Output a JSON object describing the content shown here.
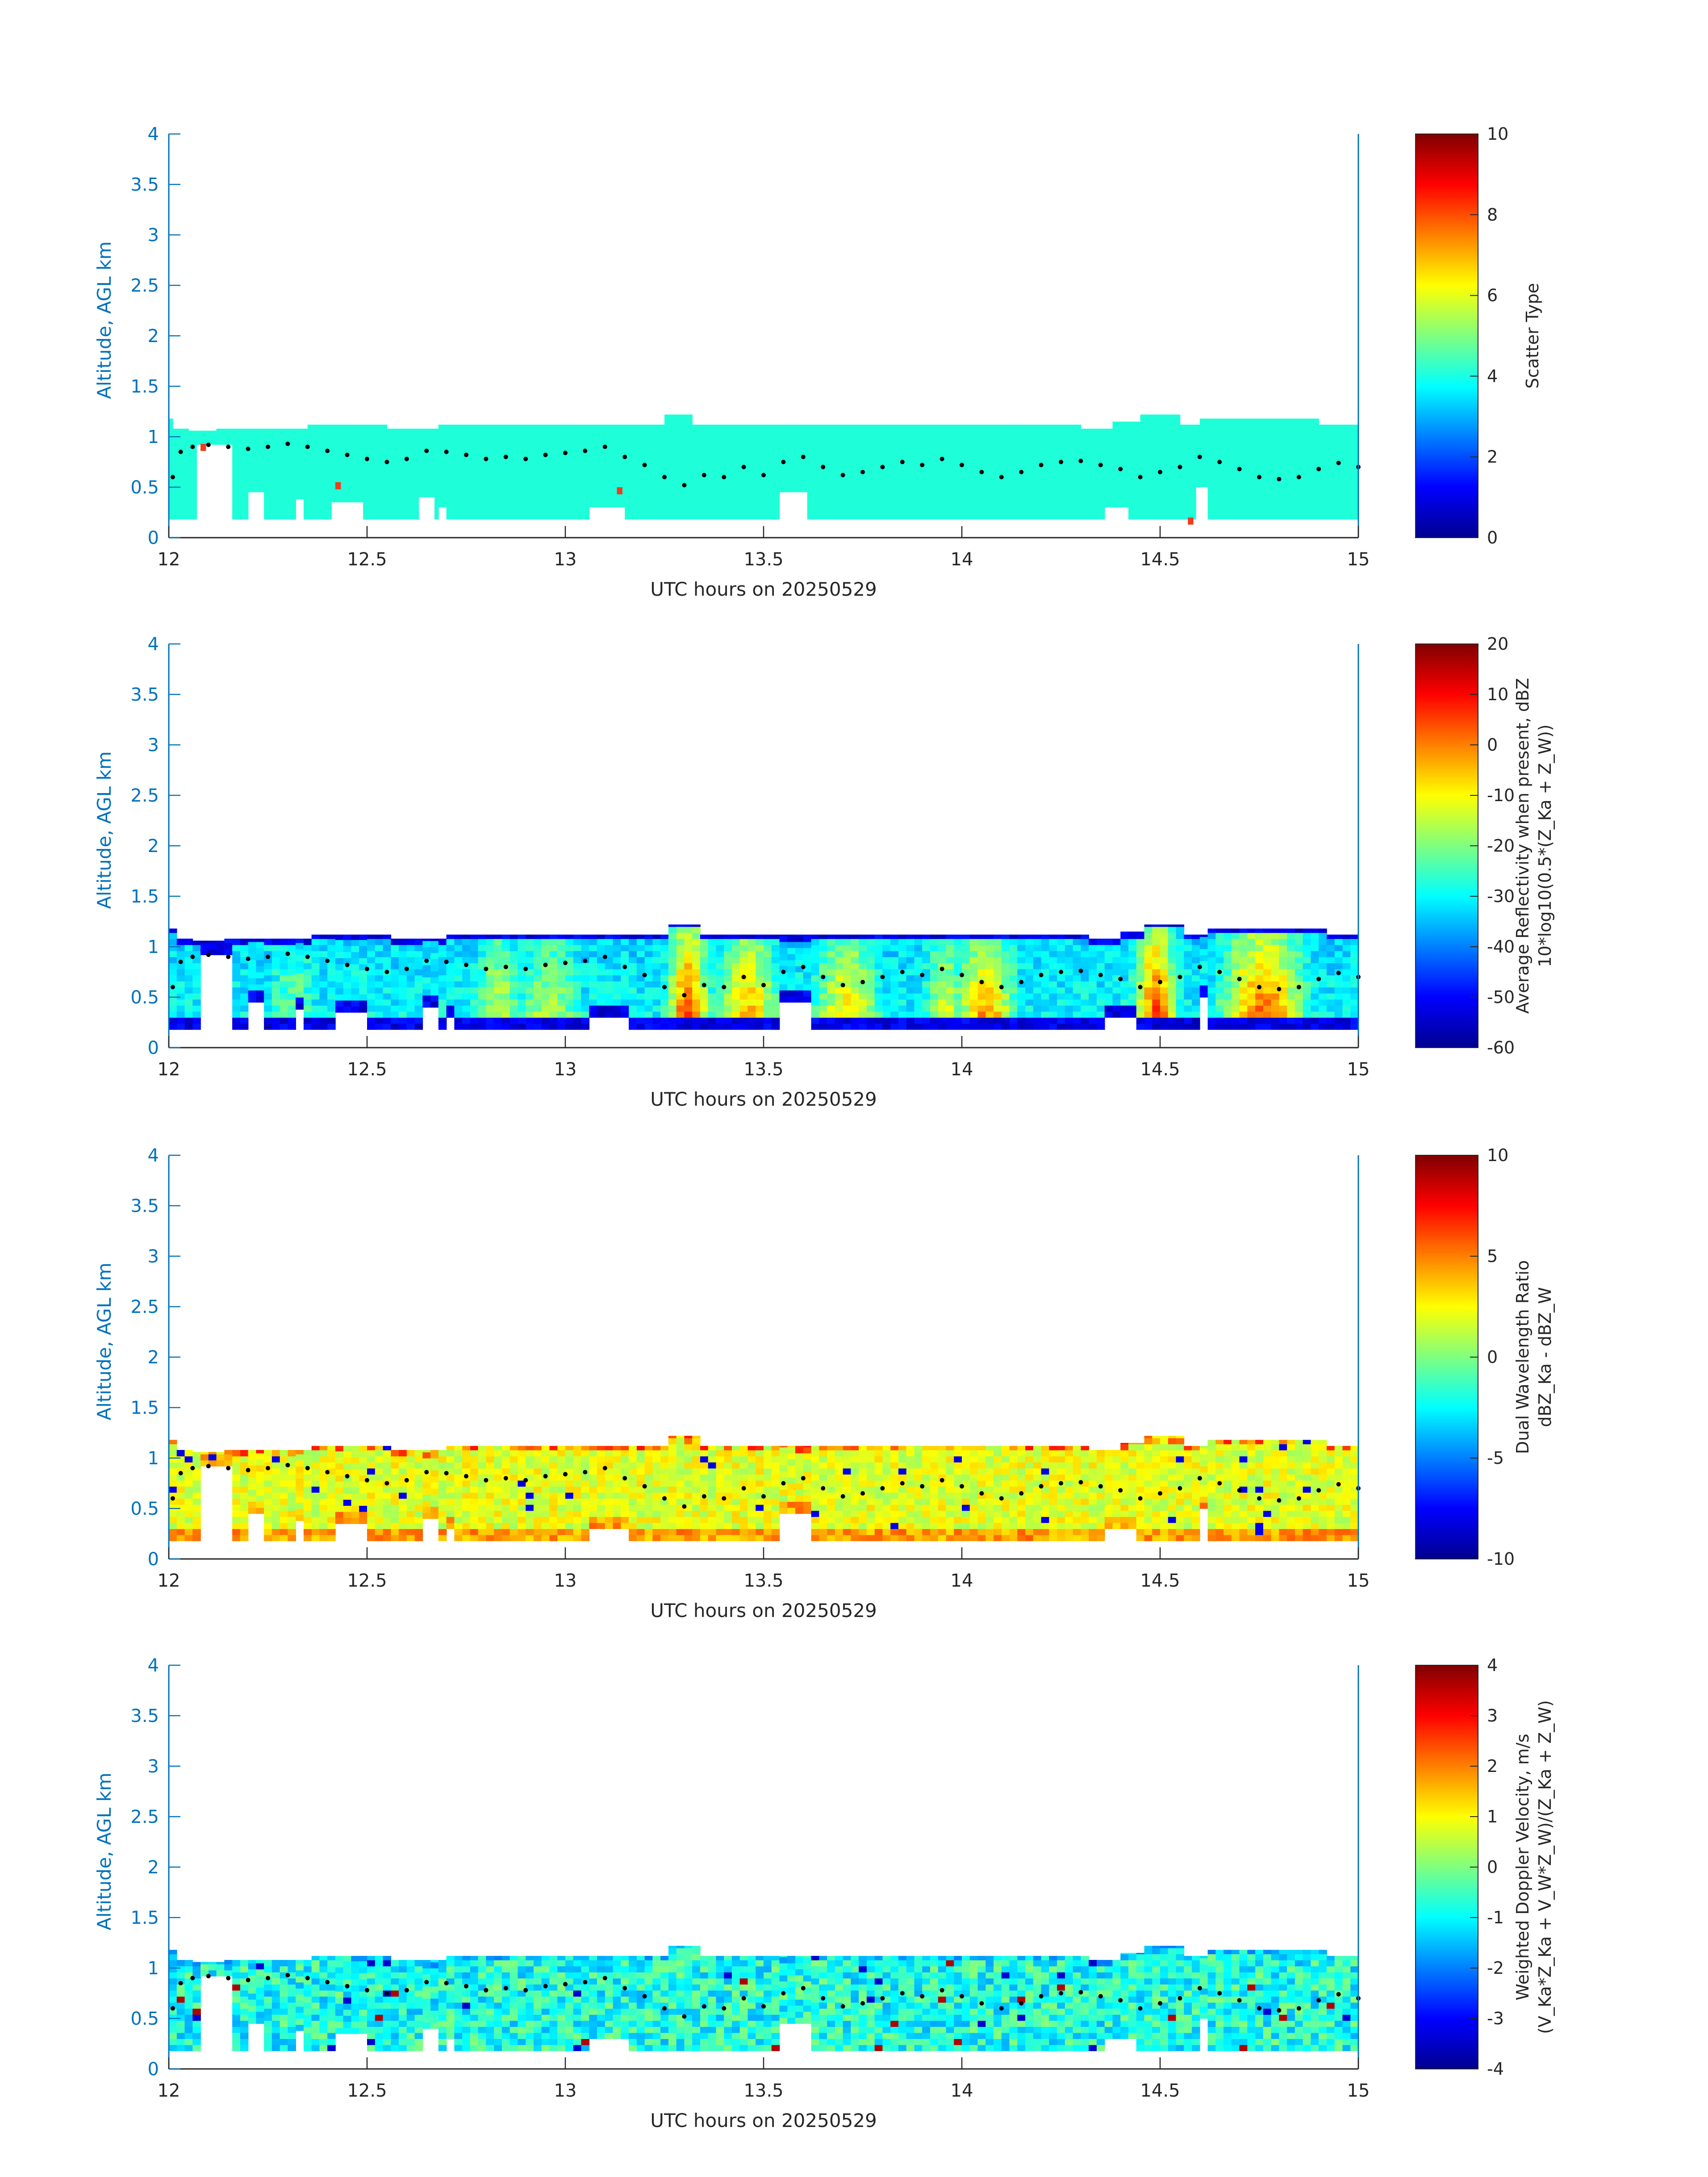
{
  "chart_data": [
    {
      "type": "heatmap",
      "field": "scatter_type",
      "xlabel": "UTC hours on 20250529",
      "ylabel": "Altitude, AGL km",
      "xlim": [
        12,
        15
      ],
      "ylim": [
        0,
        4
      ],
      "xticks": [
        "12",
        "12.5",
        "13",
        "13.5",
        "14",
        "14.5",
        "15"
      ],
      "yticks": [
        "0",
        "0.5",
        "1",
        "1.5",
        "2",
        "2.5",
        "3",
        "3.5",
        "4"
      ],
      "colorbar": {
        "label": "Scatter Type",
        "label2": "",
        "clim": [
          0,
          10
        ],
        "ticks": [
          "0",
          "2",
          "4",
          "6",
          "8",
          "10"
        ]
      }
    },
    {
      "type": "heatmap",
      "field": "reflectivity",
      "xlabel": "UTC hours on 20250529",
      "ylabel": "Altitude, AGL km",
      "xlim": [
        12,
        15
      ],
      "ylim": [
        0,
        4
      ],
      "xticks": [
        "12",
        "12.5",
        "13",
        "13.5",
        "14",
        "14.5",
        "15"
      ],
      "yticks": [
        "0",
        "0.5",
        "1",
        "1.5",
        "2",
        "2.5",
        "3",
        "3.5",
        "4"
      ],
      "colorbar": {
        "label": "Average Reflectivity when present, dBZ",
        "label2": "10*log10(0.5*(Z_Ka + Z_W))",
        "clim": [
          -60,
          20
        ],
        "ticks": [
          "-60",
          "-50",
          "-40",
          "-30",
          "-20",
          "-10",
          "0",
          "10",
          "20"
        ]
      }
    },
    {
      "type": "heatmap",
      "field": "dual_wavelength_ratio",
      "xlabel": "UTC hours on 20250529",
      "ylabel": "Altitude, AGL km",
      "xlim": [
        12,
        15
      ],
      "ylim": [
        0,
        4
      ],
      "xticks": [
        "12",
        "12.5",
        "13",
        "13.5",
        "14",
        "14.5",
        "15"
      ],
      "yticks": [
        "0",
        "0.5",
        "1",
        "1.5",
        "2",
        "2.5",
        "3",
        "3.5",
        "4"
      ],
      "colorbar": {
        "label": "Dual Wavelength Ratio",
        "label2": "dBZ_Ka - dBZ_W",
        "clim": [
          -10,
          10
        ],
        "ticks": [
          "-10",
          "-5",
          "0",
          "5",
          "10"
        ]
      }
    },
    {
      "type": "heatmap",
      "field": "doppler_velocity",
      "xlabel": "UTC hours on 20250529",
      "ylabel": "Altitude, AGL km",
      "xlim": [
        12,
        15
      ],
      "ylim": [
        0,
        4
      ],
      "xticks": [
        "12",
        "12.5",
        "13",
        "13.5",
        "14",
        "14.5",
        "15"
      ],
      "yticks": [
        "0",
        "0.5",
        "1",
        "1.5",
        "2",
        "2.5",
        "3",
        "3.5",
        "4"
      ],
      "colorbar": {
        "label": "Weighted Doppler Velocity, m/s",
        "label2": "(V_Ka*Z_Ka + V_W*Z_W)/(Z_Ka + Z_W)",
        "clim": [
          -4,
          4
        ],
        "ticks": [
          "-4",
          "-3",
          "-2",
          "-1",
          "0",
          "1",
          "2",
          "3",
          "4"
        ]
      }
    }
  ],
  "cloud": {
    "base_km": 0.18,
    "top_segments": [
      [
        12.0,
        12.01,
        1.18
      ],
      [
        12.01,
        12.05,
        1.08
      ],
      [
        12.05,
        12.12,
        1.06
      ],
      [
        12.12,
        12.35,
        1.08
      ],
      [
        12.35,
        12.55,
        1.12
      ],
      [
        12.55,
        12.68,
        1.08
      ],
      [
        12.68,
        13.15,
        1.12
      ],
      [
        13.15,
        13.25,
        1.12
      ],
      [
        13.25,
        13.32,
        1.22
      ],
      [
        13.32,
        13.55,
        1.12
      ],
      [
        13.55,
        14.3,
        1.12
      ],
      [
        14.3,
        14.38,
        1.08
      ],
      [
        14.38,
        14.45,
        1.15
      ],
      [
        14.45,
        14.55,
        1.22
      ],
      [
        14.55,
        14.6,
        1.12
      ],
      [
        14.6,
        14.9,
        1.18
      ],
      [
        14.9,
        15.0,
        1.12
      ]
    ],
    "gaps": [
      [
        12.06,
        12.14,
        0.92
      ],
      [
        12.18,
        12.22,
        0.45
      ],
      [
        12.3,
        12.33,
        0.38
      ],
      [
        12.4,
        12.48,
        0.35
      ],
      [
        12.62,
        12.66,
        0.4
      ],
      [
        12.68,
        12.7,
        0.3
      ],
      [
        13.05,
        13.15,
        0.3
      ],
      [
        13.52,
        13.6,
        0.45
      ],
      [
        14.35,
        14.42,
        0.3
      ],
      [
        14.58,
        14.61,
        0.5
      ]
    ]
  },
  "cloud_base_dots": [
    [
      12.01,
      0.6
    ],
    [
      12.03,
      0.85
    ],
    [
      12.06,
      0.9
    ],
    [
      12.1,
      0.92
    ],
    [
      12.15,
      0.9
    ],
    [
      12.2,
      0.88
    ],
    [
      12.25,
      0.9
    ],
    [
      12.3,
      0.93
    ],
    [
      12.35,
      0.9
    ],
    [
      12.4,
      0.86
    ],
    [
      12.45,
      0.82
    ],
    [
      12.5,
      0.78
    ],
    [
      12.55,
      0.75
    ],
    [
      12.6,
      0.78
    ],
    [
      12.65,
      0.86
    ],
    [
      12.7,
      0.85
    ],
    [
      12.75,
      0.82
    ],
    [
      12.8,
      0.78
    ],
    [
      12.85,
      0.8
    ],
    [
      12.9,
      0.78
    ],
    [
      12.95,
      0.82
    ],
    [
      13.0,
      0.84
    ],
    [
      13.05,
      0.86
    ],
    [
      13.1,
      0.9
    ],
    [
      13.15,
      0.8
    ],
    [
      13.2,
      0.72
    ],
    [
      13.25,
      0.6
    ],
    [
      13.3,
      0.52
    ],
    [
      13.35,
      0.62
    ],
    [
      13.4,
      0.6
    ],
    [
      13.45,
      0.7
    ],
    [
      13.5,
      0.62
    ],
    [
      13.55,
      0.75
    ],
    [
      13.6,
      0.8
    ],
    [
      13.65,
      0.7
    ],
    [
      13.7,
      0.62
    ],
    [
      13.75,
      0.65
    ],
    [
      13.8,
      0.7
    ],
    [
      13.85,
      0.75
    ],
    [
      13.9,
      0.72
    ],
    [
      13.95,
      0.78
    ],
    [
      14.0,
      0.72
    ],
    [
      14.05,
      0.65
    ],
    [
      14.1,
      0.6
    ],
    [
      14.15,
      0.65
    ],
    [
      14.2,
      0.72
    ],
    [
      14.25,
      0.75
    ],
    [
      14.3,
      0.76
    ],
    [
      14.35,
      0.72
    ],
    [
      14.4,
      0.68
    ],
    [
      14.45,
      0.6
    ],
    [
      14.5,
      0.65
    ],
    [
      14.55,
      0.7
    ],
    [
      14.6,
      0.8
    ],
    [
      14.65,
      0.75
    ],
    [
      14.7,
      0.68
    ],
    [
      14.75,
      0.6
    ],
    [
      14.8,
      0.58
    ],
    [
      14.85,
      0.6
    ],
    [
      14.9,
      0.68
    ],
    [
      14.95,
      0.74
    ],
    [
      15.0,
      0.7
    ]
  ],
  "colors": {
    "axis": "#0072BD",
    "scatter_fill": "#1EFFD9",
    "dot": "#000000"
  }
}
